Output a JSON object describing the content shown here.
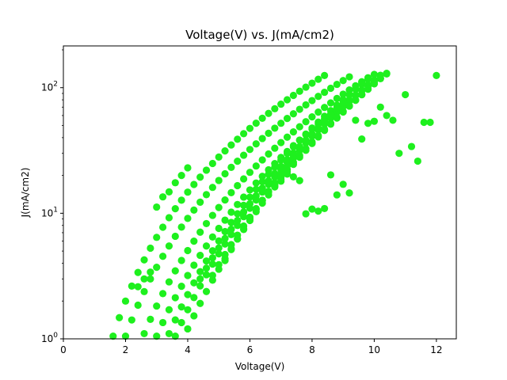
{
  "chart_data": {
    "type": "scatter",
    "title": "Voltage(V) vs. J(mA/cm2)",
    "xlabel": "Voltage(V)",
    "ylabel": "J(mA/cm2)",
    "xlim": [
      0,
      12.64
    ],
    "ylim": [
      1,
      215
    ],
    "yscale": "log",
    "grid": false,
    "legend": "none",
    "marker_color": "#1ef01e",
    "x_ticks": [
      {
        "value": 0,
        "label": "0"
      },
      {
        "value": 2,
        "label": "2"
      },
      {
        "value": 4,
        "label": "4"
      },
      {
        "value": 6,
        "label": "6"
      },
      {
        "value": 8,
        "label": "8"
      },
      {
        "value": 10,
        "label": "10"
      },
      {
        "value": 12,
        "label": "12"
      }
    ],
    "y_ticks": [
      {
        "value": 1,
        "base": "10",
        "exp": "0"
      },
      {
        "value": 10,
        "base": "10",
        "exp": "1"
      },
      {
        "value": 100,
        "base": "10",
        "exp": "2"
      }
    ],
    "series_groups": [
      {
        "from": 1.6,
        "to": 8.4,
        "step": 0.2,
        "start_j": 1.05,
        "end_j": 125
      },
      {
        "from": 2.0,
        "to": 9.2,
        "step": 0.2,
        "start_j": 1.05,
        "end_j": 122
      },
      {
        "from": 2.6,
        "to": 9.8,
        "step": 0.2,
        "start_j": 1.1,
        "end_j": 120
      },
      {
        "from": 3.0,
        "to": 10.3,
        "step": 0.2,
        "start_j": 1.05,
        "end_j": 124
      },
      {
        "from": 3.4,
        "to": 9.9,
        "step": 0.2,
        "start_j": 1.1,
        "end_j": 122
      },
      {
        "from": 3.6,
        "to": 10.1,
        "step": 0.2,
        "start_j": 1.05,
        "end_j": 120
      },
      {
        "from": 4.0,
        "to": 10.3,
        "step": 0.2,
        "start_j": 1.2,
        "end_j": 124
      },
      {
        "from": 4.4,
        "to": 10.0,
        "step": 0.2,
        "start_j": 3.0,
        "end_j": 115
      },
      {
        "from": 4.8,
        "to": 10.2,
        "step": 0.2,
        "start_j": 3.2,
        "end_j": 118
      },
      {
        "from": 5.2,
        "to": 9.6,
        "step": 0.2,
        "start_j": 4.2,
        "end_j": 110
      }
    ],
    "points": [
      [
        2.4,
        2.6
      ],
      [
        2.6,
        3.0
      ],
      [
        2.8,
        3.4
      ],
      [
        3.0,
        11.2
      ],
      [
        3.2,
        13.5
      ],
      [
        3.4,
        14.8
      ],
      [
        3.6,
        17.5
      ],
      [
        3.8,
        20.0
      ],
      [
        4.0,
        23.0
      ],
      [
        6.8,
        16.5
      ],
      [
        7.0,
        18.0
      ],
      [
        7.2,
        20.5
      ],
      [
        7.4,
        19.5
      ],
      [
        7.6,
        18.2
      ],
      [
        7.8,
        9.9
      ],
      [
        8.0,
        10.8
      ],
      [
        8.2,
        10.4
      ],
      [
        8.4,
        10.9
      ],
      [
        8.6,
        20.2
      ],
      [
        8.8,
        14.0
      ],
      [
        9.0,
        17.0
      ],
      [
        9.2,
        14.5
      ],
      [
        9.4,
        55.0
      ],
      [
        9.6,
        39.0
      ],
      [
        9.8,
        52.0
      ],
      [
        10.0,
        54.0
      ],
      [
        10.2,
        70.0
      ],
      [
        10.4,
        60.0
      ],
      [
        10.6,
        55.0
      ],
      [
        10.8,
        30.0
      ],
      [
        11.0,
        88.0
      ],
      [
        11.2,
        34.0
      ],
      [
        11.4,
        26.0
      ],
      [
        11.6,
        53.0
      ],
      [
        11.8,
        53.0
      ],
      [
        12.0,
        125.0
      ]
    ]
  }
}
